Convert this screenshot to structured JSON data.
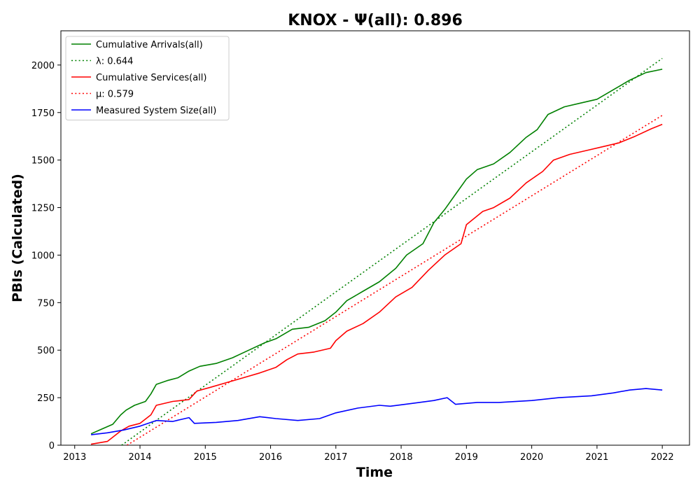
{
  "chart_data": {
    "type": "line",
    "title": "KNOX -  Ψ(all): 0.896",
    "xlabel": "Time",
    "ylabel": "PBIs (Calculated)",
    "xlim": [
      "2012-10-15",
      "2022-06-01"
    ],
    "ylim": [
      0,
      2180
    ],
    "x_ticks": [
      "2013",
      "2014",
      "2015",
      "2016",
      "2017",
      "2018",
      "2019",
      "2020",
      "2021",
      "2022"
    ],
    "y_ticks": [
      0,
      250,
      500,
      750,
      1000,
      1250,
      1500,
      1750,
      2000
    ],
    "legend_position": "upper-left",
    "grid": false,
    "series": [
      {
        "name": "Cumulative Arrivals(all)",
        "color": "#008000",
        "style": "solid",
        "points": [
          [
            "2013-04-01",
            60
          ],
          [
            "2013-06-01",
            85
          ],
          [
            "2013-08-01",
            110
          ],
          [
            "2013-09-15",
            160
          ],
          [
            "2013-10-15",
            185
          ],
          [
            "2013-12-01",
            210
          ],
          [
            "2014-02-01",
            230
          ],
          [
            "2014-03-01",
            270
          ],
          [
            "2014-04-01",
            320
          ],
          [
            "2014-06-01",
            340
          ],
          [
            "2014-08-01",
            355
          ],
          [
            "2014-10-01",
            390
          ],
          [
            "2014-12-01",
            415
          ],
          [
            "2015-03-01",
            430
          ],
          [
            "2015-06-01",
            460
          ],
          [
            "2015-09-01",
            500
          ],
          [
            "2015-12-01",
            540
          ],
          [
            "2016-02-01",
            560
          ],
          [
            "2016-05-01",
            610
          ],
          [
            "2016-08-01",
            620
          ],
          [
            "2016-11-01",
            655
          ],
          [
            "2017-01-01",
            700
          ],
          [
            "2017-03-01",
            760
          ],
          [
            "2017-06-01",
            810
          ],
          [
            "2017-09-01",
            860
          ],
          [
            "2017-12-01",
            930
          ],
          [
            "2018-02-01",
            1000
          ],
          [
            "2018-05-01",
            1060
          ],
          [
            "2018-07-01",
            1170
          ],
          [
            "2018-09-01",
            1240
          ],
          [
            "2018-11-01",
            1320
          ],
          [
            "2019-01-01",
            1400
          ],
          [
            "2019-03-01",
            1450
          ],
          [
            "2019-06-01",
            1480
          ],
          [
            "2019-09-01",
            1540
          ],
          [
            "2019-12-01",
            1620
          ],
          [
            "2020-02-01",
            1660
          ],
          [
            "2020-04-01",
            1740
          ],
          [
            "2020-07-01",
            1780
          ],
          [
            "2020-10-01",
            1800
          ],
          [
            "2021-01-01",
            1820
          ],
          [
            "2021-04-01",
            1870
          ],
          [
            "2021-07-01",
            1920
          ],
          [
            "2021-10-01",
            1960
          ],
          [
            "2022-01-01",
            1978
          ]
        ]
      },
      {
        "name": "λ: 0.644",
        "color": "#008000",
        "style": "dotted",
        "points": [
          [
            "2013-09-20",
            0
          ],
          [
            "2022-01-01",
            2035
          ]
        ]
      },
      {
        "name": "Cumulative Services(all)",
        "color": "#ff0000",
        "style": "solid",
        "points": [
          [
            "2013-04-01",
            5
          ],
          [
            "2013-07-01",
            20
          ],
          [
            "2013-09-15",
            75
          ],
          [
            "2013-11-01",
            100
          ],
          [
            "2014-01-01",
            115
          ],
          [
            "2014-03-01",
            160
          ],
          [
            "2014-04-01",
            210
          ],
          [
            "2014-07-01",
            230
          ],
          [
            "2014-10-01",
            240
          ],
          [
            "2014-11-15",
            285
          ],
          [
            "2015-02-01",
            305
          ],
          [
            "2015-05-01",
            330
          ],
          [
            "2015-08-01",
            355
          ],
          [
            "2015-11-01",
            380
          ],
          [
            "2016-02-01",
            410
          ],
          [
            "2016-04-01",
            450
          ],
          [
            "2016-06-01",
            480
          ],
          [
            "2016-09-01",
            490
          ],
          [
            "2016-12-01",
            510
          ],
          [
            "2017-01-01",
            550
          ],
          [
            "2017-03-01",
            600
          ],
          [
            "2017-06-01",
            640
          ],
          [
            "2017-09-01",
            700
          ],
          [
            "2017-12-01",
            780
          ],
          [
            "2018-03-01",
            830
          ],
          [
            "2018-06-01",
            920
          ],
          [
            "2018-09-01",
            1000
          ],
          [
            "2018-12-01",
            1060
          ],
          [
            "2019-01-01",
            1160
          ],
          [
            "2019-04-01",
            1230
          ],
          [
            "2019-06-01",
            1250
          ],
          [
            "2019-09-01",
            1300
          ],
          [
            "2019-12-01",
            1380
          ],
          [
            "2020-03-01",
            1440
          ],
          [
            "2020-05-01",
            1500
          ],
          [
            "2020-08-01",
            1530
          ],
          [
            "2020-11-01",
            1550
          ],
          [
            "2021-02-01",
            1570
          ],
          [
            "2021-05-01",
            1590
          ],
          [
            "2021-08-01",
            1625
          ],
          [
            "2021-11-01",
            1665
          ],
          [
            "2022-01-01",
            1688
          ]
        ]
      },
      {
        "name": "μ: 0.579",
        "color": "#ff0000",
        "style": "dotted",
        "points": [
          [
            "2013-10-20",
            0
          ],
          [
            "2022-01-01",
            1735
          ]
        ]
      },
      {
        "name": "Measured System Size(all)",
        "color": "#0000ff",
        "style": "solid",
        "points": [
          [
            "2013-04-01",
            55
          ],
          [
            "2013-07-01",
            65
          ],
          [
            "2013-10-01",
            80
          ],
          [
            "2014-01-01",
            100
          ],
          [
            "2014-04-01",
            130
          ],
          [
            "2014-07-01",
            125
          ],
          [
            "2014-10-01",
            145
          ],
          [
            "2014-11-01",
            115
          ],
          [
            "2015-03-01",
            120
          ],
          [
            "2015-07-01",
            130
          ],
          [
            "2015-11-01",
            150
          ],
          [
            "2016-02-01",
            140
          ],
          [
            "2016-06-01",
            130
          ],
          [
            "2016-10-01",
            140
          ],
          [
            "2017-01-01",
            170
          ],
          [
            "2017-05-01",
            195
          ],
          [
            "2017-09-01",
            210
          ],
          [
            "2017-11-01",
            205
          ],
          [
            "2018-03-01",
            220
          ],
          [
            "2018-07-01",
            235
          ],
          [
            "2018-09-15",
            250
          ],
          [
            "2018-11-01",
            215
          ],
          [
            "2019-03-01",
            225
          ],
          [
            "2019-07-01",
            225
          ],
          [
            "2020-01-01",
            235
          ],
          [
            "2020-06-01",
            250
          ],
          [
            "2020-12-01",
            260
          ],
          [
            "2021-04-01",
            275
          ],
          [
            "2021-07-01",
            290
          ],
          [
            "2021-10-01",
            298
          ],
          [
            "2022-01-01",
            290
          ]
        ]
      }
    ]
  }
}
